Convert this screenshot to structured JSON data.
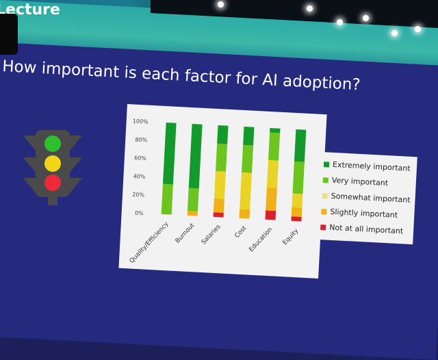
{
  "banner": {
    "label": "Lecture"
  },
  "slide": {
    "title": "How important is each factor for AI adoption?"
  },
  "colors": {
    "Extremely important": "#149a2c",
    "Very important": "#6cc41e",
    "Somewhat important": "#e9d324",
    "Slightly important": "#f0b018",
    "Not at all important": "#d8202e"
  },
  "chart_data": {
    "type": "bar",
    "stacked": true,
    "title": "",
    "xlabel": "",
    "ylabel": "",
    "ylim": [
      0,
      100
    ],
    "yticks": [
      "0%",
      "20%",
      "40%",
      "60%",
      "80%",
      "100%"
    ],
    "categories": [
      "Quality/Efficiency",
      "Burnout",
      "Salaries",
      "Cost",
      "Education",
      "Equity"
    ],
    "series": [
      {
        "name": "Not at all important",
        "values": [
          0,
          0,
          5,
          0,
          10,
          5
        ]
      },
      {
        "name": "Slightly important",
        "values": [
          0,
          5,
          15,
          10,
          25,
          10
        ]
      },
      {
        "name": "Somewhat important",
        "values": [
          0,
          0,
          30,
          40,
          30,
          15
        ]
      },
      {
        "name": "Very important",
        "values": [
          33,
          25,
          30,
          30,
          30,
          35
        ]
      },
      {
        "name": "Extremely important",
        "values": [
          67,
          70,
          20,
          20,
          5,
          35
        ]
      }
    ],
    "legend": {
      "position": "right",
      "entries": [
        "Extremely important",
        "Very important",
        "Somewhat important",
        "Slightly important",
        "Not at all important"
      ]
    }
  }
}
